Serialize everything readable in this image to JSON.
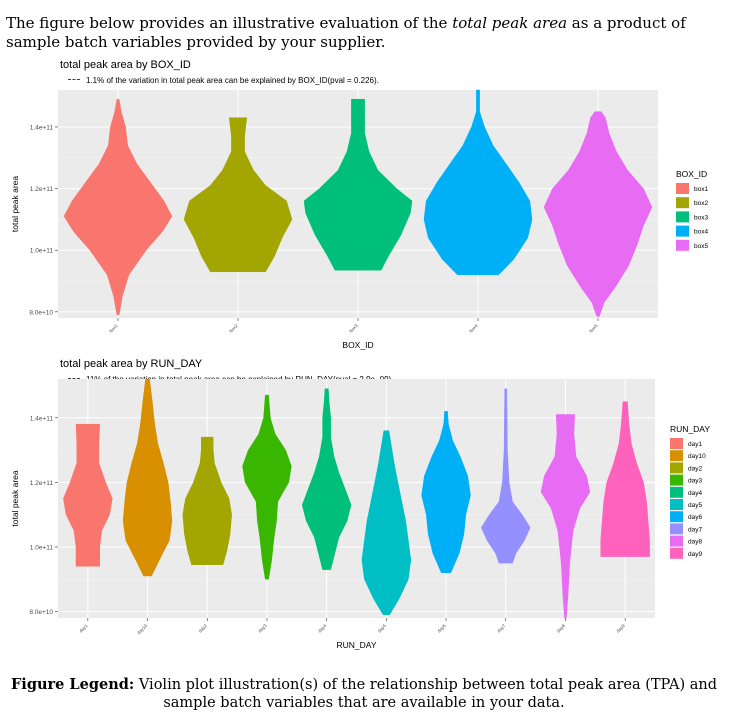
{
  "intro": {
    "before": "The figure below provides an illustrative evaluation of the ",
    "emph": "total peak area",
    "after": " as a product of sample batch variables provided by your supplier."
  },
  "caption": {
    "label": "Figure Legend:",
    "text": " Violin plot illustration(s) of the relationship between total peak area (TPA) and sample batch variables that are available in your data."
  },
  "chart_data": [
    {
      "type": "violin",
      "title": "total peak area by BOX_ID",
      "subtitle": "1.1% of the variation in total peak area can be explained by BOX_ID(pval = 0.226).",
      "xlabel": "BOX_ID",
      "ylabel": "total peak area",
      "yticks": [
        80000000000,
        100000000000,
        120000000000,
        140000000000
      ],
      "ytick_labels": [
        "8.0e+10",
        "1.0e+11",
        "1.2e+11",
        "1.4e+11"
      ],
      "ylim": [
        78000000000,
        152000000000
      ],
      "legend_title": "BOX_ID",
      "legend_position": "right",
      "grid": true,
      "categories": [
        "box1",
        "box2",
        "box3",
        "box4",
        "box5"
      ],
      "colors": [
        "#F8766D",
        "#A3A500",
        "#00BF7D",
        "#00B0F6",
        "#E76BF3"
      ],
      "violins": [
        {
          "min": 79000000000.0,
          "max": 149000000000.0,
          "profile": [
            [
              79000000000.0,
              0.02
            ],
            [
              85000000000.0,
              0.08
            ],
            [
              92000000000.0,
              0.2
            ],
            [
              100000000000.0,
              0.52
            ],
            [
              106000000000.0,
              0.82
            ],
            [
              111000000000.0,
              1.0
            ],
            [
              116000000000.0,
              0.85
            ],
            [
              122000000000.0,
              0.6
            ],
            [
              128000000000.0,
              0.35
            ],
            [
              134000000000.0,
              0.18
            ],
            [
              140000000000.0,
              0.14
            ],
            [
              145000000000.0,
              0.06
            ],
            [
              149000000000.0,
              0.02
            ]
          ]
        },
        {
          "min": 93000000000.0,
          "max": 143000000000.0,
          "profile": [
            [
              93000000000.0,
              0.5
            ],
            [
              98000000000.0,
              0.66
            ],
            [
              104000000000.0,
              0.8
            ],
            [
              110000000000.0,
              0.98
            ],
            [
              116000000000.0,
              0.88
            ],
            [
              121000000000.0,
              0.5
            ],
            [
              126000000000.0,
              0.28
            ],
            [
              132000000000.0,
              0.12
            ],
            [
              137000000000.0,
              0.12
            ],
            [
              143000000000.0,
              0.16
            ]
          ]
        },
        {
          "min": 93500000000.0,
          "max": 149000000000.0,
          "profile": [
            [
              93500000000.0,
              0.42
            ],
            [
              98000000000.0,
              0.55
            ],
            [
              105000000000.0,
              0.78
            ],
            [
              112000000000.0,
              0.95
            ],
            [
              116000000000.0,
              0.98
            ],
            [
              120000000000.0,
              0.7
            ],
            [
              126000000000.0,
              0.36
            ],
            [
              132000000000.0,
              0.2
            ],
            [
              138000000000.0,
              0.12
            ],
            [
              144000000000.0,
              0.12
            ],
            [
              149000000000.0,
              0.12
            ]
          ]
        },
        {
          "min": 92000000000.0,
          "max": 152000000000.0,
          "profile": [
            [
              92000000000.0,
              0.38
            ],
            [
              97000000000.0,
              0.66
            ],
            [
              104000000000.0,
              0.92
            ],
            [
              110000000000.0,
              1.0
            ],
            [
              116000000000.0,
              0.96
            ],
            [
              122000000000.0,
              0.76
            ],
            [
              128000000000.0,
              0.52
            ],
            [
              134000000000.0,
              0.28
            ],
            [
              140000000000.0,
              0.12
            ],
            [
              145000000000.0,
              0.03
            ],
            [
              152000000000.0,
              0.03
            ]
          ]
        },
        {
          "min": 78500000000.0,
          "max": 145000000000.0,
          "profile": [
            [
              78500000000.0,
              0.02
            ],
            [
              83000000000.0,
              0.1
            ],
            [
              88000000000.0,
              0.28
            ],
            [
              95000000000.0,
              0.5
            ],
            [
              102000000000.0,
              0.64
            ],
            [
              108000000000.0,
              0.74
            ],
            [
              114000000000.0,
              0.88
            ],
            [
              120000000000.0,
              0.74
            ],
            [
              126000000000.0,
              0.48
            ],
            [
              132000000000.0,
              0.3
            ],
            [
              138000000000.0,
              0.18
            ],
            [
              143000000000.0,
              0.12
            ],
            [
              145000000000.0,
              0.05
            ]
          ]
        }
      ]
    },
    {
      "type": "violin",
      "title": "total peak area by RUN_DAY",
      "subtitle": "11% of the variation in total peak area can be explained by RUN_DAY(pval = 2.9e−09).",
      "xlabel": "RUN_DAY",
      "ylabel": "total peak area",
      "yticks": [
        80000000000,
        100000000000,
        120000000000,
        140000000000
      ],
      "ytick_labels": [
        "8.0e+10",
        "1.0e+11",
        "1.2e+11",
        "1.4e+11"
      ],
      "ylim": [
        78000000000,
        152000000000
      ],
      "legend_title": "RUN_DAY",
      "legend_position": "right",
      "grid": true,
      "categories": [
        "day1",
        "day10",
        "day2",
        "day3",
        "day4",
        "day5",
        "day6",
        "day7",
        "day8",
        "day9"
      ],
      "colors": [
        "#F8766D",
        "#D89000",
        "#A3A500",
        "#39B600",
        "#00BF7D",
        "#00BFC4",
        "#00B0F6",
        "#9590FF",
        "#E76BF3",
        "#FF62BC"
      ],
      "violins": [
        {
          "min": 94000000000.0,
          "max": 138000000000.0,
          "profile": [
            [
              94000000000.0,
              0.3
            ],
            [
              100000000000.0,
              0.3
            ],
            [
              105000000000.0,
              0.35
            ],
            [
              110000000000.0,
              0.55
            ],
            [
              115000000000.0,
              0.62
            ],
            [
              120000000000.0,
              0.45
            ],
            [
              126000000000.0,
              0.28
            ],
            [
              132000000000.0,
              0.28
            ],
            [
              138000000000.0,
              0.3
            ]
          ]
        },
        {
          "min": 91000000000.0,
          "max": 152000000000.0,
          "profile": [
            [
              91000000000.0,
              0.1
            ],
            [
              96000000000.0,
              0.3
            ],
            [
              102000000000.0,
              0.55
            ],
            [
              108000000000.0,
              0.62
            ],
            [
              114000000000.0,
              0.58
            ],
            [
              120000000000.0,
              0.52
            ],
            [
              126000000000.0,
              0.4
            ],
            [
              132000000000.0,
              0.26
            ],
            [
              138000000000.0,
              0.18
            ],
            [
              145000000000.0,
              0.12
            ],
            [
              152000000000.0,
              0.05
            ]
          ]
        },
        {
          "min": 94500000000.0,
          "max": 134000000000.0,
          "profile": [
            [
              94500000000.0,
              0.4
            ],
            [
              99000000000.0,
              0.5
            ],
            [
              104000000000.0,
              0.58
            ],
            [
              110000000000.0,
              0.62
            ],
            [
              115000000000.0,
              0.55
            ],
            [
              120000000000.0,
              0.35
            ],
            [
              126000000000.0,
              0.18
            ],
            [
              130000000000.0,
              0.15
            ],
            [
              134000000000.0,
              0.15
            ]
          ]
        },
        {
          "min": 90000000000.0,
          "max": 147000000000.0,
          "profile": [
            [
              90000000000.0,
              0.05
            ],
            [
              96000000000.0,
              0.14
            ],
            [
              102000000000.0,
              0.2
            ],
            [
              108000000000.0,
              0.28
            ],
            [
              114000000000.0,
              0.32
            ],
            [
              120000000000.0,
              0.64
            ],
            [
              125000000000.0,
              0.72
            ],
            [
              130000000000.0,
              0.55
            ],
            [
              135000000000.0,
              0.24
            ],
            [
              140000000000.0,
              0.1
            ],
            [
              147000000000.0,
              0.05
            ]
          ]
        },
        {
          "min": 93000000000.0,
          "max": 149000000000.0,
          "profile": [
            [
              93000000000.0,
              0.1
            ],
            [
              98000000000.0,
              0.2
            ],
            [
              103000000000.0,
              0.3
            ],
            [
              108000000000.0,
              0.5
            ],
            [
              113000000000.0,
              0.6
            ],
            [
              118000000000.0,
              0.45
            ],
            [
              123000000000.0,
              0.3
            ],
            [
              128000000000.0,
              0.18
            ],
            [
              134000000000.0,
              0.1
            ],
            [
              140000000000.0,
              0.1
            ],
            [
              145000000000.0,
              0.06
            ],
            [
              149000000000.0,
              0.04
            ]
          ]
        },
        {
          "min": 79000000000.0,
          "max": 136000000000.0,
          "profile": [
            [
              79000000000.0,
              0.05
            ],
            [
              84000000000.0,
              0.2
            ],
            [
              90000000000.0,
              0.34
            ],
            [
              96000000000.0,
              0.38
            ],
            [
              102000000000.0,
              0.34
            ],
            [
              108000000000.0,
              0.3
            ],
            [
              114000000000.0,
              0.24
            ],
            [
              120000000000.0,
              0.18
            ],
            [
              126000000000.0,
              0.12
            ],
            [
              131000000000.0,
              0.08
            ],
            [
              136000000000.0,
              0.04
            ]
          ]
        },
        {
          "min": 92000000000.0,
          "max": 142000000000.0,
          "profile": [
            [
              92000000000.0,
              0.1
            ],
            [
              98000000000.0,
              0.28
            ],
            [
              104000000000.0,
              0.38
            ],
            [
              110000000000.0,
              0.42
            ],
            [
              116000000000.0,
              0.52
            ],
            [
              122000000000.0,
              0.46
            ],
            [
              128000000000.0,
              0.3
            ],
            [
              133000000000.0,
              0.14
            ],
            [
              138000000000.0,
              0.05
            ],
            [
              142000000000.0,
              0.03
            ]
          ]
        },
        {
          "min": 95000000000.0,
          "max": 149000000000.0,
          "profile": [
            [
              95000000000.0,
              0.2
            ],
            [
              98000000000.0,
              0.3
            ],
            [
              102000000000.0,
              0.55
            ],
            [
              106000000000.0,
              0.72
            ],
            [
              110000000000.0,
              0.48
            ],
            [
              114000000000.0,
              0.2
            ],
            [
              120000000000.0,
              0.1
            ],
            [
              130000000000.0,
              0.05
            ],
            [
              140000000000.0,
              0.04
            ],
            [
              149000000000.0,
              0.03
            ]
          ]
        },
        {
          "min": 78000000000.0,
          "max": 141000000000.0,
          "profile": [
            [
              78000000000.0,
              0.02
            ],
            [
              85000000000.0,
              0.06
            ],
            [
              95000000000.0,
              0.1
            ],
            [
              105000000000.0,
              0.18
            ],
            [
              112000000000.0,
              0.34
            ],
            [
              117000000000.0,
              0.58
            ],
            [
              122000000000.0,
              0.5
            ],
            [
              128000000000.0,
              0.25
            ],
            [
              135000000000.0,
              0.2
            ],
            [
              141000000000.0,
              0.22
            ]
          ]
        },
        {
          "min": 97000000000.0,
          "max": 145000000000.0,
          "profile": [
            [
              97000000000.0,
              0.32
            ],
            [
              102000000000.0,
              0.32
            ],
            [
              108000000000.0,
              0.3
            ],
            [
              114000000000.0,
              0.28
            ],
            [
              120000000000.0,
              0.24
            ],
            [
              126000000000.0,
              0.15
            ],
            [
              132000000000.0,
              0.08
            ],
            [
              138000000000.0,
              0.05
            ],
            [
              145000000000.0,
              0.03
            ]
          ]
        }
      ]
    }
  ]
}
